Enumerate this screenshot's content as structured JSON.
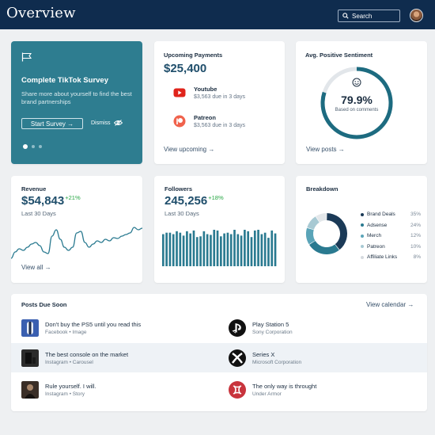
{
  "header": {
    "title": "Overview",
    "search_label": "Search"
  },
  "survey": {
    "title": "Complete TikTok Survey",
    "description": "Share more about yourself to find the best brand partnerships",
    "start_label": "Start Survey →",
    "dismiss_label": "Dismiss"
  },
  "payments": {
    "title": "Upcoming Payments",
    "amount": "$25,400",
    "items": [
      {
        "name": "Youtube",
        "detail": "$3,563 due in 3 days"
      },
      {
        "name": "Patreon",
        "detail": "$3,563 due in 3 days"
      }
    ],
    "link": "View upcoming →"
  },
  "sentiment": {
    "title": "Avg. Positive Sentiment",
    "value": "79.9%",
    "fraction": 0.799,
    "sub": "Based on comments",
    "link": "View posts →"
  },
  "revenue": {
    "title": "Revenue",
    "amount": "$54,843",
    "delta": "+21%",
    "period": "Last 30 Days",
    "link": "View all →",
    "series": [
      6,
      14,
      18,
      16,
      20,
      24,
      26,
      22,
      14,
      12,
      34,
      42,
      30,
      20,
      16,
      20,
      38,
      40,
      26,
      20,
      24,
      28,
      26,
      30,
      28,
      32,
      31,
      34,
      36,
      38,
      45,
      42,
      44
    ]
  },
  "followers": {
    "title": "Followers",
    "amount": "245,256",
    "delta": "+18%",
    "period": "Last 30 Days",
    "bars": [
      88,
      92,
      92,
      88,
      96,
      92,
      84,
      96,
      90,
      98,
      80,
      82,
      96,
      88,
      86,
      100,
      98,
      82,
      90,
      92,
      88,
      100,
      88,
      84,
      100,
      96,
      80,
      98,
      100,
      88,
      92,
      78,
      98,
      90
    ]
  },
  "breakdown": {
    "title": "Breakdown",
    "items": [
      {
        "label": "Brand Deals",
        "value": "35%",
        "pct": 35,
        "color": "#1b3a57"
      },
      {
        "label": "Adsense",
        "value": "24%",
        "pct": 24,
        "color": "#2a7a90"
      },
      {
        "label": "Merch",
        "value": "12%",
        "pct": 12,
        "color": "#5aa4b8"
      },
      {
        "label": "Patreon",
        "value": "10%",
        "pct": 10,
        "color": "#a7c9d3"
      },
      {
        "label": "Affiliate Links",
        "value": "8%",
        "pct": 8,
        "color": "#e3e7ea"
      }
    ]
  },
  "posts": {
    "title": "Posts Due Soon",
    "link": "View calendar →",
    "left": [
      {
        "title": "Don't buy the PS5 until you read this",
        "sub": "Facebook • Image"
      },
      {
        "title": "The best console on the market",
        "sub": "Instagram • Carousel"
      },
      {
        "title": "Rule yourself. I will.",
        "sub": "Instagram • Story"
      }
    ],
    "right": [
      {
        "title": "Play Station 5",
        "sub": "Sony Corporation"
      },
      {
        "title": "Series X",
        "sub": "Microsoft Corporation"
      },
      {
        "title": "The only way is throught",
        "sub": "Under Armor"
      }
    ]
  },
  "colors": {
    "header": "#0f2c4e",
    "accent": "#2e7d90",
    "positive": "#28a745",
    "chart": "#2a7a90"
  }
}
